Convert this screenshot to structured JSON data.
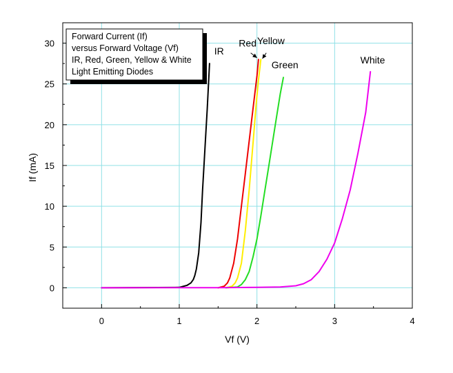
{
  "chart_data": {
    "type": "line",
    "title_lines": [
      "Forward Current (If)",
      "versus Forward Voltage (Vf)",
      "IR, Red, Green, Yellow & White",
      "Light Emitting Diodes"
    ],
    "xlabel": "Vf (V)",
    "ylabel": "If (mA)",
    "xlim": [
      -0.5,
      4
    ],
    "ylim": [
      -2.5,
      32.5
    ],
    "x_ticks": [
      0,
      1,
      2,
      3,
      4
    ],
    "x_tick_labels": [
      "0",
      "1",
      "2",
      "3",
      "4"
    ],
    "y_ticks": [
      0,
      5,
      10,
      15,
      20,
      25,
      30
    ],
    "y_tick_labels": [
      "0",
      "5",
      "10",
      "15",
      "20",
      "25",
      "30"
    ],
    "grid": true,
    "legend_position": "top-left",
    "series": [
      {
        "name": "IR",
        "color": "#000000",
        "x": [
          0,
          1.0,
          1.1,
          1.15,
          1.18,
          1.2,
          1.22,
          1.25,
          1.28,
          1.3,
          1.33,
          1.36,
          1.39
        ],
        "y": [
          0,
          0.05,
          0.3,
          0.6,
          1.0,
          1.5,
          2.3,
          4.3,
          8.0,
          12.0,
          17.0,
          22.0,
          27.5
        ]
      },
      {
        "name": "Red",
        "color": "#ee0000",
        "x": [
          1.5,
          1.58,
          1.62,
          1.65,
          1.7,
          1.75,
          1.8,
          1.85,
          1.9,
          1.95,
          2.0,
          2.02
        ],
        "y": [
          0,
          0.2,
          0.6,
          1.2,
          3.0,
          6.0,
          10.0,
          14.0,
          18.0,
          22.0,
          26.0,
          28.0
        ]
      },
      {
        "name": "Yellow",
        "color": "#ffee00",
        "x": [
          1.6,
          1.68,
          1.72,
          1.75,
          1.8,
          1.85,
          1.9,
          1.93,
          1.96,
          1.99,
          2.02,
          2.05
        ],
        "y": [
          0,
          0.2,
          0.6,
          1.2,
          3.0,
          7.0,
          12.0,
          15.5,
          19.0,
          22.5,
          25.5,
          28.0
        ]
      },
      {
        "name": "Green",
        "color": "#22dd22",
        "x": [
          1.6,
          1.75,
          1.8,
          1.85,
          1.9,
          1.95,
          2.0,
          2.05,
          2.1,
          2.15,
          2.2,
          2.25,
          2.3,
          2.34
        ],
        "y": [
          0,
          0.1,
          0.4,
          1.0,
          2.0,
          3.8,
          6.0,
          8.8,
          11.8,
          14.8,
          17.8,
          20.8,
          23.8,
          25.8
        ]
      },
      {
        "name": "White",
        "color": "#ee00ee",
        "x": [
          0,
          1.5,
          2.0,
          2.3,
          2.5,
          2.6,
          2.7,
          2.8,
          2.9,
          3.0,
          3.1,
          3.2,
          3.3,
          3.4,
          3.46
        ],
        "y": [
          0,
          0.02,
          0.05,
          0.1,
          0.25,
          0.5,
          1.0,
          2.0,
          3.5,
          5.5,
          8.5,
          12.0,
          16.5,
          21.5,
          26.5
        ]
      }
    ]
  }
}
